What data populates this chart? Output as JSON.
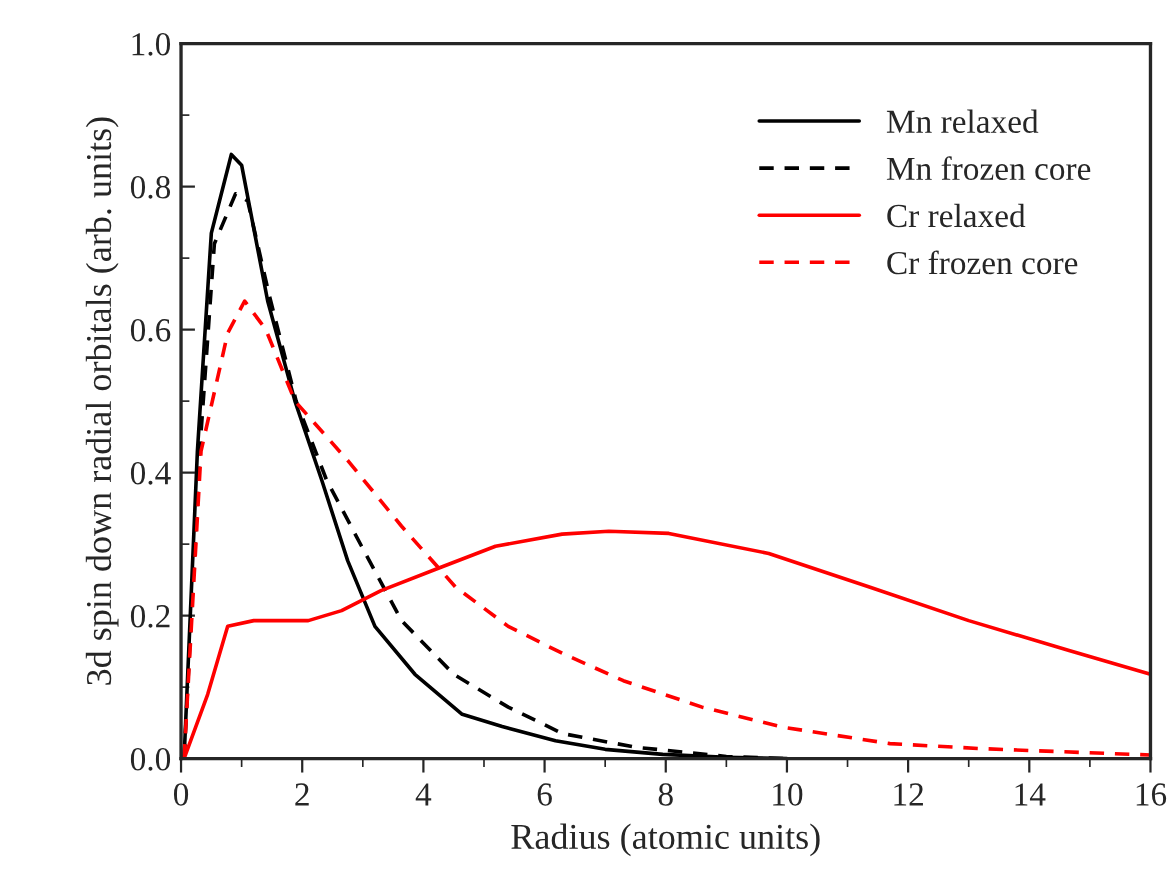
{
  "chart_data": {
    "type": "line",
    "xlabel": "Radius (atomic units)",
    "ylabel": "3d spin down radial orbitals (arb. units)",
    "xlim": [
      0,
      16
    ],
    "xticks": [
      0,
      2,
      4,
      6,
      8,
      10,
      12,
      14,
      16
    ],
    "ylim": [
      0,
      1.0
    ],
    "yticks": [
      {
        "value": 0,
        "label": "0.0"
      },
      0.2,
      0.4,
      0.6,
      0.8,
      {
        "value": 1.0,
        "label": "1.0"
      }
    ],
    "grid": false,
    "legend": "top right",
    "marker": "none",
    "series": [
      {
        "name": "Mn relaxed",
        "color": "#000000",
        "line_style": "solid",
        "x": [
          0.05,
          0.27,
          0.5,
          0.83,
          1.0,
          1.43,
          1.88,
          2.32,
          2.75,
          3.2,
          3.86,
          4.64,
          5.3,
          6.18,
          7.0,
          7.95,
          9.0,
          10.0
        ],
        "values": [
          0,
          0.43,
          0.735,
          0.845,
          0.83,
          0.64,
          0.5,
          0.39,
          0.277,
          0.185,
          0.118,
          0.062,
          0.045,
          0.025,
          0.013,
          0.006,
          0.002,
          0
        ]
      },
      {
        "name": "Mn frozen core",
        "color": "#000000",
        "line_style": "dashed",
        "x": [
          0.05,
          0.3,
          0.55,
          0.9,
          1.1,
          1.45,
          1.9,
          2.4,
          2.98,
          3.64,
          4.5,
          5.4,
          6.3,
          7.5,
          9.0,
          10.0
        ],
        "values": [
          0,
          0.42,
          0.72,
          0.79,
          0.78,
          0.65,
          0.5,
          0.39,
          0.297,
          0.193,
          0.118,
          0.072,
          0.035,
          0.016,
          0.003,
          0
        ]
      },
      {
        "name": "Cr relaxed",
        "color": "#ff0000",
        "line_style": "solid",
        "x": [
          0.05,
          0.44,
          0.77,
          1.2,
          2.1,
          2.65,
          3.3,
          4.3,
          5.19,
          6.29,
          7.06,
          8.05,
          9.7,
          11.36,
          13.0,
          14.67,
          16.0
        ],
        "values": [
          0,
          0.09,
          0.185,
          0.193,
          0.193,
          0.207,
          0.235,
          0.268,
          0.297,
          0.314,
          0.318,
          0.315,
          0.287,
          0.24,
          0.193,
          0.151,
          0.118
        ]
      },
      {
        "name": "Cr frozen core",
        "color": "#ff0000",
        "line_style": "dashed",
        "x": [
          0.05,
          0.33,
          0.77,
          1.05,
          1.4,
          1.88,
          2.75,
          3.64,
          4.53,
          5.4,
          6.3,
          7.3,
          8.6,
          9.93,
          11.7,
          13.2,
          16.0
        ],
        "values": [
          0,
          0.43,
          0.595,
          0.64,
          0.6,
          0.5,
          0.417,
          0.325,
          0.24,
          0.185,
          0.147,
          0.109,
          0.072,
          0.044,
          0.021,
          0.014,
          0.005
        ]
      }
    ]
  }
}
